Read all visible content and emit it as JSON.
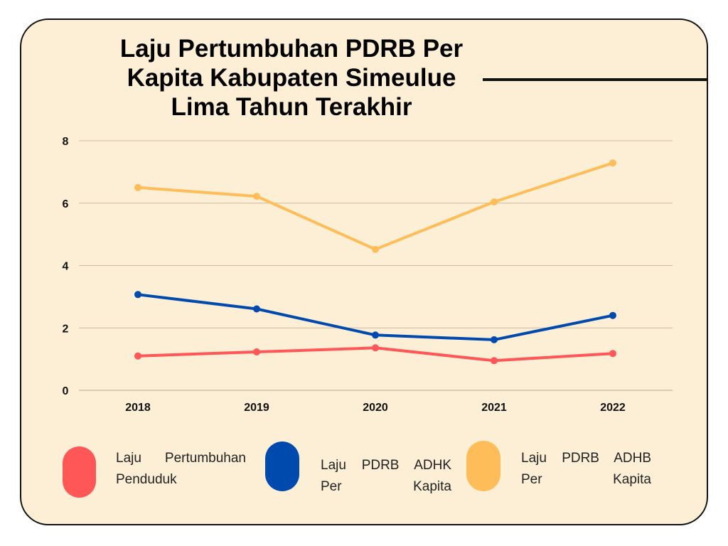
{
  "title_lines": [
    "Laju Pertumbuhan PDRB Per",
    "Kapita Kabupaten Simeulue",
    "Lima Tahun Terakhir"
  ],
  "colors": {
    "background": "#fdefd6",
    "border": "#111111",
    "grid": "#cdb99b"
  },
  "chart_data": {
    "type": "line",
    "title": "Laju Pertumbuhan PDRB Per Kapita Kabupaten Simeulue Lima Tahun Terakhir",
    "categories": [
      "2018",
      "2019",
      "2020",
      "2021",
      "2022"
    ],
    "ylim": [
      0,
      8
    ],
    "yticks": [
      "0",
      "2",
      "4",
      "6",
      "8"
    ],
    "grid": true,
    "legend_position": "bottom",
    "series": [
      {
        "name": "Laju Pertumbuhan Penduduk",
        "color": "#ff5757",
        "values": [
          1.1,
          1.23,
          1.36,
          0.95,
          1.18
        ]
      },
      {
        "name": "Laju PDRB ADHK Per Kapita",
        "color": "#004aad",
        "values": [
          3.07,
          2.61,
          1.77,
          1.62,
          2.4
        ]
      },
      {
        "name": "Laju PDRB ADHB Per Kapita",
        "color": "#ffbd59",
        "values": [
          6.5,
          6.22,
          4.52,
          6.04,
          7.29
        ]
      }
    ]
  },
  "legend": [
    {
      "lines": [
        "Laju Pertumbuhan",
        "Penduduk"
      ],
      "color": "#ff5757"
    },
    {
      "lines": [
        "Laju PDRB ADHK",
        "Per Kapita"
      ],
      "color": "#004aad"
    },
    {
      "lines": [
        "Laju PDRB ADHB",
        "Per Kapita"
      ],
      "color": "#ffbd59"
    }
  ]
}
